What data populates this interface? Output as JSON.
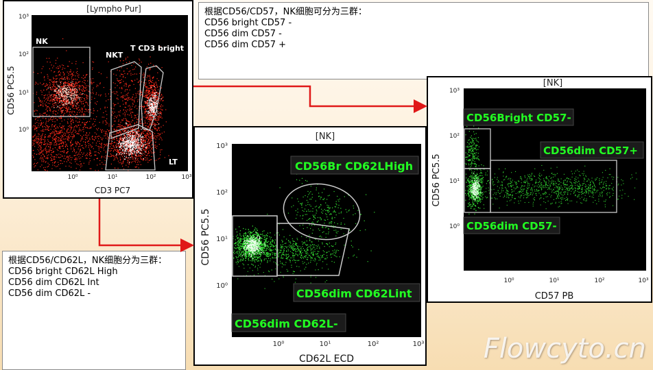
{
  "plot1": {
    "title": "[Lympho Pur]",
    "xlabel": "CD3 PC7",
    "ylabel": "CD56 PC5.5",
    "gates": {
      "nk": "NK",
      "nkt": "NKT",
      "t": "T CD3 bright",
      "lt": "LT"
    },
    "yticks": [
      "10³",
      "10²",
      "10¹",
      "10⁰"
    ],
    "xticks": [
      "10⁰",
      "10¹",
      "10²",
      "10³"
    ]
  },
  "note_top": {
    "heading": "根据CD56/CD57，NK细胞可分为三群：",
    "lines": [
      "CD56 bright CD57 -",
      "CD56 dim CD57 -",
      "CD56 dim CD57 +"
    ]
  },
  "note_left": {
    "heading": "根据CD56/CD62L，NK细胞分为三群：",
    "lines": [
      "CD56 bright CD62L High",
      "CD56 dim CD62L Int",
      "CD56 dim CD62L -"
    ]
  },
  "plot2": {
    "title": "[NK]",
    "xlabel": "CD62L ECD",
    "ylabel": "CD56 PC5.5",
    "gates": {
      "br_high": "CD56Br CD62LHigh",
      "dim_int": "CD56dim CD62Lint",
      "dim_neg": "CD56dim CD62L-"
    },
    "yticks": [
      "10³",
      "10²",
      "10¹",
      "10⁰"
    ],
    "xticks": [
      "10⁰",
      "10¹",
      "10²",
      "10³"
    ]
  },
  "plot3": {
    "title": "[NK]",
    "xlabel": "CD57 PB",
    "ylabel": "CD56 PC5.5",
    "gates": {
      "br_neg": "CD56Bright CD57-",
      "dim_pos": "CD56dim CD57+",
      "dim_neg": "CD56dim CD57-"
    },
    "yticks": [
      "10³",
      "10²",
      "10¹",
      "10⁰"
    ],
    "xticks": [
      "10⁰",
      "10¹",
      "10²",
      "10³"
    ]
  },
  "watermark": "Flowcyto.cn",
  "colors": {
    "arrow": "#e01818",
    "gate_label": "#22ff22",
    "dots_red": "#ff2a1a",
    "dots_green": "#33dd33"
  }
}
